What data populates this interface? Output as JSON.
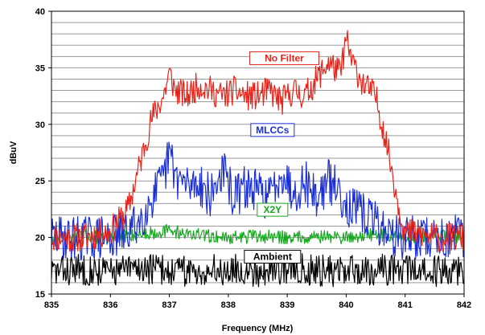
{
  "chart_data": {
    "type": "line",
    "xlabel": "Frequency (MHz)",
    "ylabel": "dBuV",
    "xlim": [
      835,
      842
    ],
    "ylim": [
      15,
      40
    ],
    "x_ticks": [
      "835",
      "836",
      "837",
      "838",
      "839",
      "840",
      "841",
      "842"
    ],
    "y_ticks": [
      "15",
      "20",
      "25",
      "30",
      "35",
      "40"
    ],
    "grid": true,
    "series": [
      {
        "name": "No Filter",
        "color": "#e8231a",
        "x": [
          835.0,
          835.5,
          836.0,
          836.3,
          836.5,
          836.7,
          836.9,
          837.0,
          837.1,
          837.3,
          837.5,
          837.7,
          837.9,
          838.1,
          838.3,
          838.5,
          838.7,
          838.9,
          839.1,
          839.3,
          839.5,
          839.7,
          839.9,
          840.0,
          840.1,
          840.3,
          840.5,
          840.7,
          840.9,
          841.0,
          841.5,
          842.0
        ],
        "values": [
          20.0,
          20.0,
          20.5,
          22.5,
          26.5,
          30.5,
          32.5,
          34.5,
          33.0,
          32.5,
          33.5,
          33.0,
          32.5,
          33.0,
          32.5,
          32.5,
          33.0,
          32.0,
          33.0,
          32.5,
          34.0,
          35.5,
          34.5,
          37.5,
          35.5,
          33.5,
          32.5,
          28.0,
          22.5,
          20.5,
          20.0,
          20.0
        ]
      },
      {
        "name": "MLCCs",
        "color": "#1b2fd6",
        "x": [
          835.0,
          835.5,
          836.0,
          836.3,
          836.5,
          836.7,
          836.9,
          837.0,
          837.1,
          837.3,
          837.5,
          837.7,
          837.9,
          838.1,
          838.3,
          838.5,
          838.7,
          838.9,
          839.1,
          839.3,
          839.5,
          839.7,
          839.9,
          840.0,
          840.1,
          840.3,
          840.5,
          840.7,
          840.9,
          841.0,
          841.5,
          842.0
        ],
        "values": [
          20.0,
          20.0,
          20.0,
          20.5,
          21.5,
          23.5,
          25.0,
          27.5,
          25.5,
          24.5,
          25.0,
          23.5,
          26.0,
          23.5,
          24.5,
          24.0,
          23.5,
          26.0,
          24.0,
          25.0,
          23.5,
          25.0,
          24.0,
          23.0,
          22.5,
          22.0,
          21.5,
          20.5,
          20.0,
          20.0,
          20.0,
          20.0
        ]
      },
      {
        "name": "X2Y",
        "color": "#17a81f",
        "x": [
          835.0,
          835.5,
          836.0,
          836.5,
          837.0,
          837.5,
          838.0,
          838.5,
          839.0,
          839.5,
          840.0,
          840.5,
          841.0,
          841.5,
          842.0
        ],
        "values": [
          20.0,
          20.1,
          20.0,
          20.3,
          20.6,
          20.2,
          20.0,
          20.1,
          20.0,
          20.1,
          20.0,
          20.3,
          20.0,
          20.2,
          20.0
        ]
      },
      {
        "name": "Ambient",
        "color": "#000000",
        "x": [
          835.0,
          835.5,
          836.0,
          836.5,
          837.0,
          837.5,
          838.0,
          838.5,
          839.0,
          839.5,
          840.0,
          840.5,
          841.0,
          841.5,
          842.0
        ],
        "values": [
          17.0,
          17.2,
          17.0,
          17.3,
          17.1,
          17.0,
          17.2,
          17.0,
          17.3,
          17.1,
          17.0,
          17.2,
          17.1,
          17.0,
          17.2
        ]
      }
    ],
    "annotations": [
      {
        "text": "No Filter",
        "color": "#e8231a",
        "x": 838.95,
        "y": 35.85
      },
      {
        "text": "MLCCs",
        "color": "#1b2fd6",
        "x": 838.75,
        "y": 29.5
      },
      {
        "text": "X2Y",
        "color": "#17a81f",
        "x": 838.75,
        "y": 22.45
      },
      {
        "text": "Ambient",
        "color": "#000000",
        "x": 838.75,
        "y": 18.3
      }
    ]
  }
}
